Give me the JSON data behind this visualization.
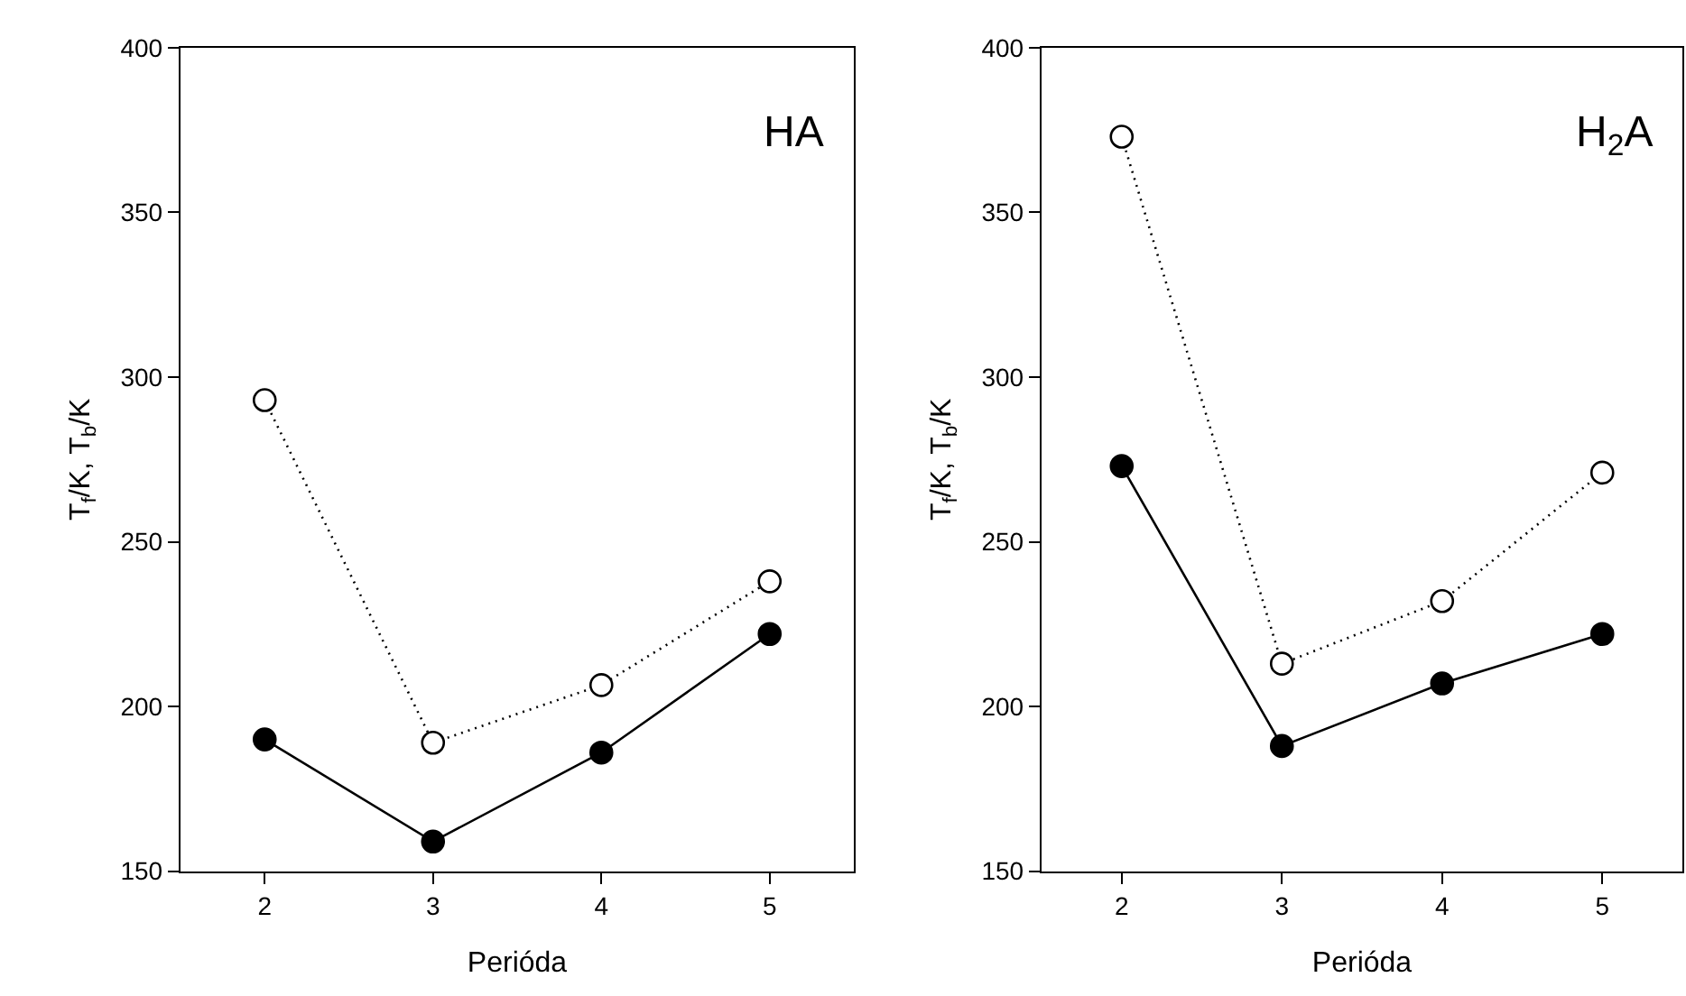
{
  "chart_data": [
    {
      "type": "line",
      "title": "HA",
      "xlabel": "Perióda",
      "ylabel": "T$_{f}$/K, T$_{b}$/K",
      "x": [
        2,
        3,
        4,
        5
      ],
      "xlim": [
        1.5,
        5.5
      ],
      "xticks": [
        2,
        3,
        4,
        5
      ],
      "ylim": [
        150,
        400
      ],
      "yticks": [
        150,
        200,
        250,
        300,
        350,
        400
      ],
      "grid": false,
      "marker": "circle",
      "series": [
        {
          "color": "#000000",
          "colors": [
            "#ffffff",
            "#ffffff",
            "#ffffff",
            "#ffffff"
          ],
          "line_style": "dotted",
          "values": [
            293,
            189,
            206.5,
            238
          ]
        },
        {
          "color": "#000000",
          "line_style": "solid",
          "values": [
            190,
            159,
            186,
            222
          ]
        }
      ]
    },
    {
      "type": "line",
      "title": "H$_{2}$A",
      "xlabel": "Perióda",
      "ylabel": "T$_{f}$/K, T$_{b}$/K",
      "x": [
        2,
        3,
        4,
        5
      ],
      "xlim": [
        1.5,
        5.5
      ],
      "xticks": [
        2,
        3,
        4,
        5
      ],
      "ylim": [
        150,
        400
      ],
      "yticks": [
        150,
        200,
        250,
        300,
        350,
        400
      ],
      "grid": false,
      "marker": "circle",
      "series": [
        {
          "color": "#000000",
          "colors": [
            "#ffffff",
            "#ffffff",
            "#ffffff",
            "#ffffff"
          ],
          "line_style": "dotted",
          "values": [
            373,
            213,
            232,
            271
          ]
        },
        {
          "color": "#000000",
          "line_style": "solid",
          "values": [
            273,
            188,
            207,
            222
          ]
        }
      ]
    }
  ]
}
